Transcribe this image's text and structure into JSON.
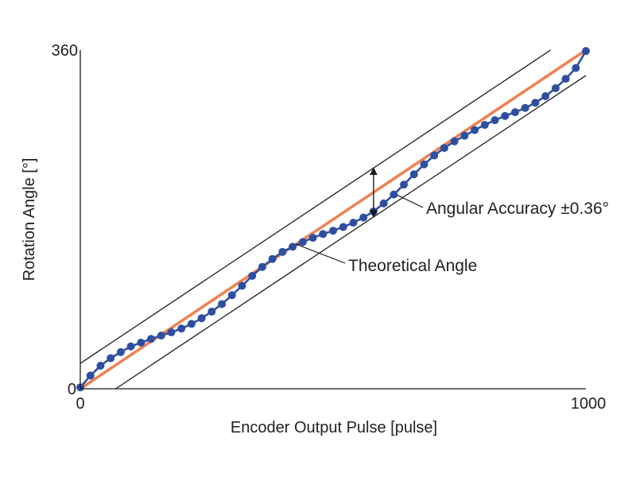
{
  "chart_data": {
    "type": "line",
    "title": "",
    "xlabel": "Encoder Output Pulse [pulse]",
    "ylabel": "Rotation Angle [°]",
    "xlim": [
      0,
      1000
    ],
    "ylim": [
      0,
      360
    ],
    "x_ticks": [
      "0",
      "1000"
    ],
    "y_ticks": [
      "0",
      "360"
    ],
    "grid": false,
    "series": [
      {
        "role": "theoretical",
        "color": "#F08050",
        "x": [
          0,
          1000
        ],
        "y": [
          0,
          360
        ]
      },
      {
        "role": "upper-bound",
        "color": "#1a1a1a",
        "x": [
          0,
          930
        ],
        "y": [
          27,
          360
        ]
      },
      {
        "role": "lower-bound",
        "color": "#1a1a1a",
        "x": [
          70,
          1000
        ],
        "y": [
          0,
          333
        ]
      },
      {
        "role": "measured",
        "color": "#2E4FA0",
        "x": [
          0,
          20,
          40,
          60,
          80,
          100,
          120,
          140,
          160,
          180,
          200,
          220,
          240,
          260,
          280,
          300,
          320,
          340,
          360,
          380,
          400,
          420,
          440,
          460,
          480,
          500,
          520,
          540,
          560,
          580,
          600,
          620,
          640,
          660,
          680,
          700,
          720,
          740,
          760,
          780,
          800,
          820,
          840,
          860,
          880,
          900,
          920,
          940,
          960,
          980,
          1000
        ],
        "y": [
          1.5,
          14,
          24.5,
          32.5,
          39,
          45,
          49,
          53,
          56.5,
          60,
          64,
          69,
          75,
          82,
          90,
          99.5,
          109.5,
          120,
          129.5,
          138,
          145.5,
          151,
          156,
          160.5,
          164.5,
          168,
          172,
          176.5,
          182,
          188.5,
          197,
          206.5,
          217,
          228,
          238.5,
          248,
          256,
          263,
          269,
          275,
          280.5,
          285.5,
          290,
          294,
          298.5,
          304,
          311,
          319.5,
          329.5,
          341,
          359
        ]
      }
    ],
    "annotations": [
      {
        "text": "Angular Accuracy ±0.36°",
        "arrow_at_x": 580
      },
      {
        "text": "Theoretical Angle"
      }
    ]
  }
}
